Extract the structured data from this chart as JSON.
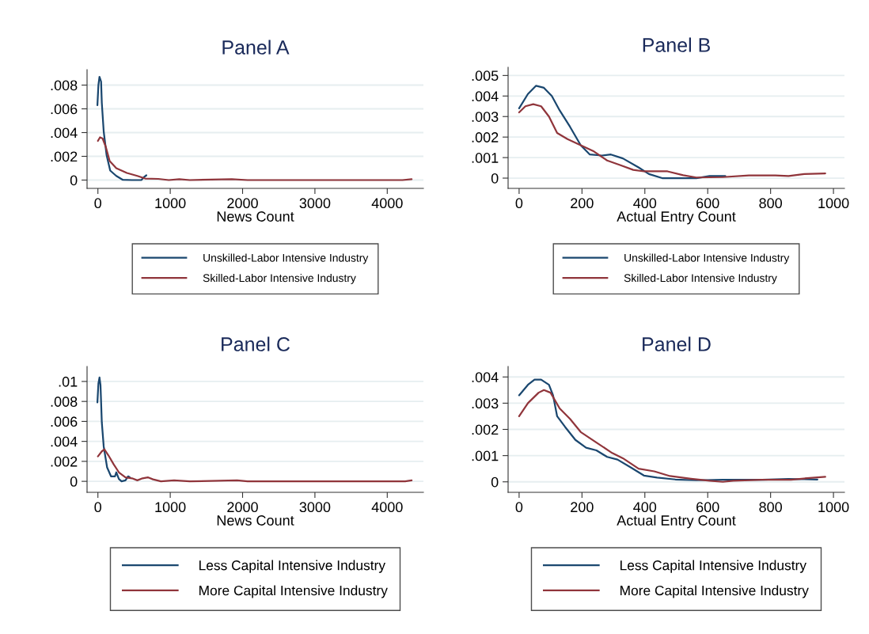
{
  "chart_data": [
    {
      "type": "line",
      "title": "Panel A",
      "xlabel": "News Count",
      "xlim": [
        -150,
        4500
      ],
      "xticks": [
        0,
        1000,
        2000,
        3000,
        4000
      ],
      "ylim": [
        -0.0007,
        0.0093
      ],
      "yticks": [
        0,
        {
          "value": 0.002,
          "label": ".002"
        },
        {
          "value": 0.004,
          "label": ".004"
        },
        {
          "value": 0.006,
          "label": ".006"
        },
        {
          "value": 0.008,
          "label": ".008"
        }
      ],
      "grid": "y",
      "legend": "bottom",
      "series": [
        {
          "name": "Unskilled-Labor Intensive Industry",
          "color": "#1a476f",
          "x": [
            -7,
            7,
            22,
            44,
            54,
            80,
            120,
            170,
            254,
            345,
            470,
            600,
            635,
            670
          ],
          "values": [
            0.0063,
            0.008,
            0.0087,
            0.0083,
            0.0065,
            0.0041,
            0.0021,
            0.0008,
            0.00035,
            2e-05,
            0,
            0,
            0.00024,
            0.0004
          ]
        },
        {
          "name": "Skilled-Labor Intensive Industry",
          "color": "#90353b",
          "x": [
            0,
            29,
            65,
            109,
            163,
            254,
            400,
            545,
            653,
            835,
            980,
            1125,
            1270,
            1851,
            2069,
            4210,
            4337
          ],
          "values": [
            0.0033,
            0.0036,
            0.0035,
            0.0028,
            0.0016,
            0.001,
            0.0006,
            0.00035,
            0.00013,
            0.0001,
            0,
            7e-05,
            0,
            7e-05,
            0,
            0,
            7e-05
          ]
        }
      ]
    },
    {
      "type": "line",
      "title": "Panel B",
      "xlabel": "Actual Entry Count",
      "xlim": [
        -35,
        1035
      ],
      "xticks": [
        0,
        200,
        400,
        600,
        800,
        1000
      ],
      "ylim": [
        -0.0005,
        0.0054
      ],
      "yticks": [
        0,
        {
          "value": 0.001,
          "label": ".001"
        },
        {
          "value": 0.002,
          "label": ".002"
        },
        {
          "value": 0.003,
          "label": ".003"
        },
        {
          "value": 0.004,
          "label": ".004"
        },
        {
          "value": 0.005,
          "label": ".005"
        }
      ],
      "grid": "y",
      "legend": "bottom",
      "series": [
        {
          "name": "Unskilled-Labor Intensive Industry",
          "color": "#1a476f",
          "x": [
            0,
            28,
            54,
            79,
            104,
            129,
            162,
            196,
            225,
            263,
            292,
            330,
            380,
            413,
            455,
            564,
            606,
            656
          ],
          "values": [
            0.0034,
            0.0041,
            0.0045,
            0.0044,
            0.004,
            0.0033,
            0.0025,
            0.0016,
            0.00115,
            0.0011,
            0.00115,
            0.00096,
            0.00052,
            0.0002,
            0,
            0,
            0.0001,
            0.0001
          ]
        },
        {
          "name": "Skilled-Labor Intensive Industry",
          "color": "#90353b",
          "x": [
            0,
            20,
            45,
            70,
            95,
            121,
            154,
            196,
            238,
            280,
            321,
            363,
            397,
            472,
            522,
            564,
            648,
            731,
            815,
            857,
            907,
            974
          ],
          "values": [
            0.0032,
            0.0035,
            0.0036,
            0.0035,
            0.003,
            0.0022,
            0.0019,
            0.0016,
            0.0013,
            0.00086,
            0.00064,
            0.0004,
            0.00033,
            0.00033,
            0.00014,
            3e-05,
            5e-05,
            0.00013,
            0.00013,
            0.0001,
            0.0002,
            0.00023
          ]
        }
      ]
    },
    {
      "type": "line",
      "title": "Panel C",
      "xlabel": "News Count",
      "xlim": [
        -150,
        4500
      ],
      "xticks": [
        0,
        1000,
        2000,
        3000,
        4000
      ],
      "ylim": [
        -0.0011,
        0.0115
      ],
      "yticks": [
        0,
        {
          "value": 0.002,
          "label": ".002"
        },
        {
          "value": 0.004,
          "label": ".004"
        },
        {
          "value": 0.006,
          "label": ".006"
        },
        {
          "value": 0.008,
          "label": ".008"
        },
        {
          "value": 0.01,
          "label": ".01"
        }
      ],
      "grid": "y",
      "legend": "bottom",
      "series": [
        {
          "name": "Less Capital Intensive Industry",
          "color": "#1a476f",
          "x": [
            -7,
            7,
            22,
            36,
            54,
            80,
            127,
            181,
            236,
            254,
            290,
            327,
            381,
            417,
            440
          ],
          "values": [
            0.0079,
            0.0098,
            0.0104,
            0.0096,
            0.0059,
            0.0035,
            0.0014,
            0.0005,
            0.0005,
            0.0009,
            0.00024,
            0,
            0.0001,
            0.0005,
            0.0004
          ]
        },
        {
          "name": "More Capital Intensive Industry",
          "color": "#90353b",
          "x": [
            0,
            54,
            91,
            145,
            218,
            290,
            381,
            472,
            545,
            617,
            690,
            762,
            871,
            1053,
            1270,
            1924,
            2069,
            4247,
            4337
          ],
          "values": [
            0.0025,
            0.003,
            0.0032,
            0.0026,
            0.0017,
            0.0009,
            0.0004,
            0.0003,
            0.0001,
            0.0003,
            0.0004,
            0.0002,
            0,
            0.0001,
            0,
            0.0001,
            0,
            0,
            0.0001
          ]
        }
      ]
    },
    {
      "type": "line",
      "title": "Panel D",
      "xlabel": "Actual Entry Count",
      "xlim": [
        -35,
        1035
      ],
      "xticks": [
        0,
        200,
        400,
        600,
        800,
        1000
      ],
      "ylim": [
        -0.0004,
        0.0044
      ],
      "yticks": [
        0,
        {
          "value": 0.001,
          "label": ".001"
        },
        {
          "value": 0.002,
          "label": ".002"
        },
        {
          "value": 0.003,
          "label": ".003"
        },
        {
          "value": 0.004,
          "label": ".004"
        }
      ],
      "grid": "y",
      "legend": "bottom",
      "series": [
        {
          "name": "Less Capital Intensive Industry",
          "color": "#1a476f",
          "x": [
            0,
            28,
            49,
            70,
            95,
            108,
            121,
            146,
            179,
            213,
            246,
            280,
            313,
            355,
            397,
            439,
            497,
            564,
            648,
            698,
            773,
            857,
            949
          ],
          "values": [
            0.0033,
            0.0037,
            0.0039,
            0.0039,
            0.0037,
            0.0033,
            0.0025,
            0.0021,
            0.0016,
            0.0013,
            0.0012,
            0.00095,
            0.00085,
            0.00055,
            0.00024,
            0.00016,
            9e-05,
            6e-05,
            8e-05,
            8e-05,
            8e-05,
            0.00011,
            9e-05
          ]
        },
        {
          "name": "More Capital Intensive Industry",
          "color": "#90353b",
          "x": [
            0,
            28,
            62,
            79,
            100,
            129,
            162,
            196,
            246,
            296,
            330,
            380,
            430,
            480,
            547,
            606,
            648,
            681,
            773,
            865,
            916,
            974
          ],
          "values": [
            0.0025,
            0.003,
            0.0034,
            0.0035,
            0.0034,
            0.0028,
            0.0024,
            0.0019,
            0.0015,
            0.0011,
            0.0009,
            0.0005,
            0.0004,
            0.00022,
            0.00012,
            4e-05,
            0,
            4e-05,
            8e-05,
            8e-05,
            0.00014,
            0.00019
          ]
        }
      ]
    }
  ]
}
